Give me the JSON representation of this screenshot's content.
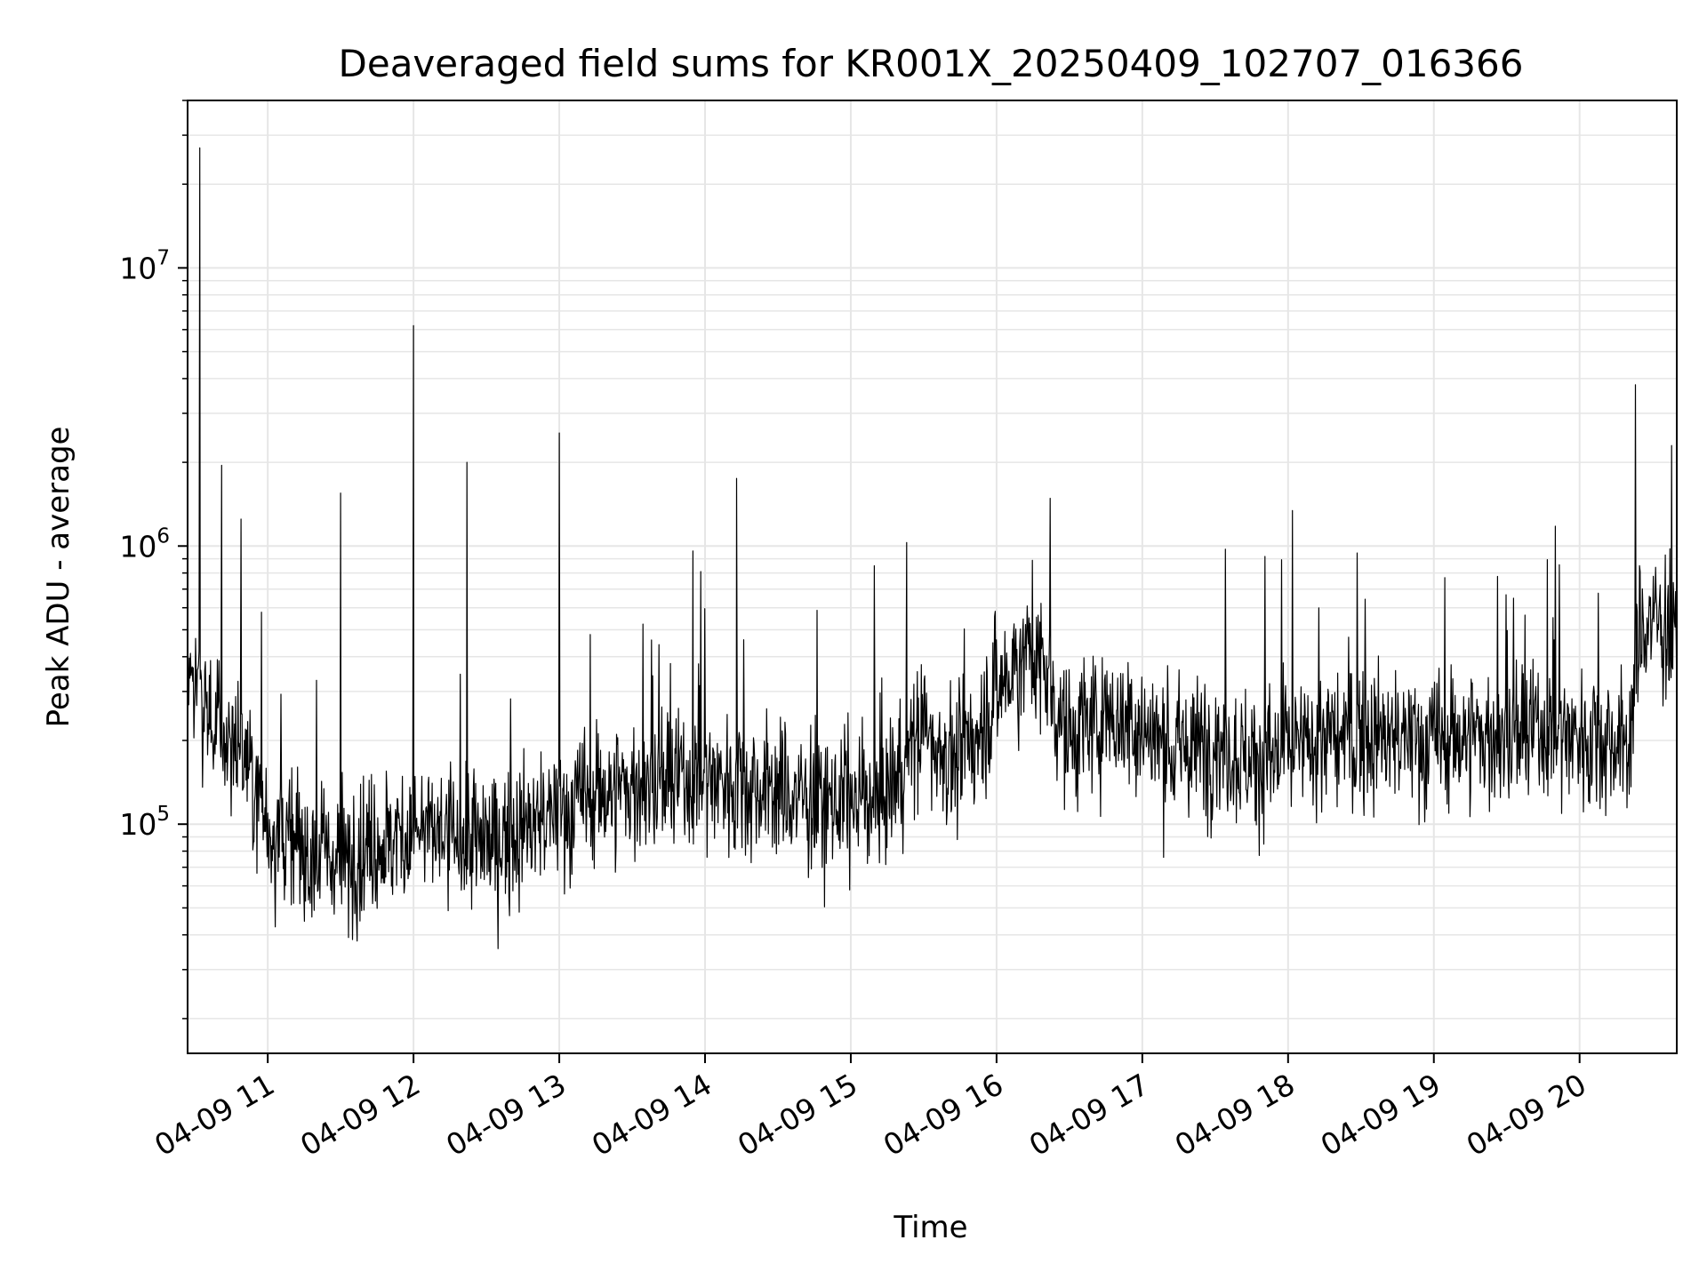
{
  "chart_data": {
    "type": "line",
    "title": "Deaveraged field sums for KR001X_20250409_102707_016366",
    "xlabel": "Time",
    "ylabel": "Peak ADU - average",
    "yscale": "log",
    "xlim": [
      "04-09 10:27",
      "04-09 20:40"
    ],
    "ylim": [
      15000,
      40000000
    ],
    "grid": true,
    "line_color": "#000000",
    "grid_color": "#e6e6e6",
    "x_ticks": [
      {
        "label": "04-09 11",
        "t": "04-09 11:00"
      },
      {
        "label": "04-09 12",
        "t": "04-09 12:00"
      },
      {
        "label": "04-09 13",
        "t": "04-09 13:00"
      },
      {
        "label": "04-09 14",
        "t": "04-09 14:00"
      },
      {
        "label": "04-09 15",
        "t": "04-09 15:00"
      },
      {
        "label": "04-09 16",
        "t": "04-09 16:00"
      },
      {
        "label": "04-09 17",
        "t": "04-09 17:00"
      },
      {
        "label": "04-09 18",
        "t": "04-09 18:00"
      },
      {
        "label": "04-09 19",
        "t": "04-09 19:00"
      },
      {
        "label": "04-09 20",
        "t": "04-09 20:00"
      }
    ],
    "y_ticks": [
      {
        "base": "10",
        "exp": "5",
        "value": 100000
      },
      {
        "base": "10",
        "exp": "6",
        "value": 1000000
      },
      {
        "base": "10",
        "exp": "7",
        "value": 10000000
      }
    ],
    "series": [
      {
        "x": [
          "04-09 10:27",
          "04-09 10:30",
          "04-09 10:35",
          "04-09 10:40",
          "04-09 10:45",
          "04-09 10:50",
          "04-09 11:00",
          "04-09 11:15",
          "04-09 11:30",
          "04-09 11:45",
          "04-09 12:00",
          "04-09 12:15",
          "04-09 12:30",
          "04-09 12:45",
          "04-09 13:00",
          "04-09 13:15",
          "04-09 13:30",
          "04-09 13:45",
          "04-09 14:00",
          "04-09 14:15",
          "04-09 14:30",
          "04-09 14:45",
          "04-09 15:00",
          "04-09 15:15",
          "04-09 15:30",
          "04-09 15:45",
          "04-09 16:00",
          "04-09 16:15",
          "04-09 16:30",
          "04-09 16:45",
          "04-09 17:00",
          "04-09 17:15",
          "04-09 17:30",
          "04-09 17:45",
          "04-09 18:00",
          "04-09 18:15",
          "04-09 18:30",
          "04-09 18:45",
          "04-09 19:00",
          "04-09 19:15",
          "04-09 19:30",
          "04-09 19:45",
          "04-09 20:00",
          "04-09 20:15",
          "04-09 20:20",
          "04-09 20:25",
          "04-09 20:30",
          "04-09 20:40"
        ],
        "y": [
          400000,
          300000,
          250000,
          220000,
          200000,
          180000,
          100000,
          80000,
          75000,
          85000,
          95000,
          90000,
          85000,
          95000,
          110000,
          130000,
          135000,
          140000,
          150000,
          140000,
          130000,
          120000,
          120000,
          130000,
          220000,
          160000,
          300000,
          450000,
          200000,
          250000,
          220000,
          180000,
          200000,
          170000,
          180000,
          200000,
          210000,
          200000,
          200000,
          210000,
          200000,
          220000,
          210000,
          200000,
          180000,
          500000,
          550000,
          450000
        ],
        "spikes": [
          {
            "t": "04-09 10:32",
            "y": 27000000
          },
          {
            "t": "04-09 10:41",
            "y": 1950000
          },
          {
            "t": "04-09 10:49",
            "y": 1250000
          },
          {
            "t": "04-09 11:30",
            "y": 1550000
          },
          {
            "t": "04-09 12:00",
            "y": 6200000
          },
          {
            "t": "04-09 12:22",
            "y": 2000000
          },
          {
            "t": "04-09 13:00",
            "y": 2550000
          },
          {
            "t": "04-09 13:55",
            "y": 960000
          },
          {
            "t": "04-09 14:13",
            "y": 1750000
          },
          {
            "t": "04-09 15:23",
            "y": 1030000
          },
          {
            "t": "04-09 20:23",
            "y": 3800000
          }
        ]
      }
    ]
  }
}
